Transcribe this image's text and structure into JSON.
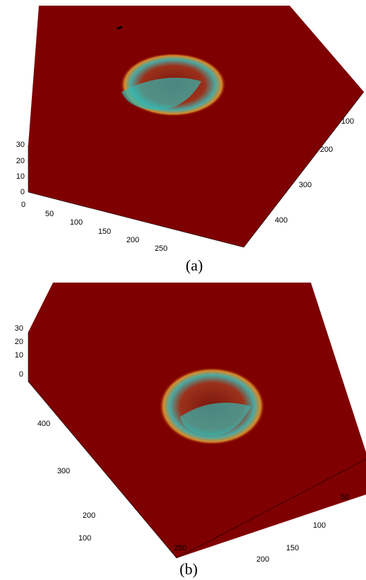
{
  "panels": [
    {
      "caption": "(a)",
      "z_ticks": [
        "0",
        "10",
        "20",
        "30"
      ],
      "x_ticks": [
        "0",
        "50",
        "100",
        "150",
        "200",
        "250"
      ],
      "y_ticks": [
        "100",
        "200",
        "300",
        "400"
      ]
    },
    {
      "caption": "(b)",
      "z_ticks": [
        "0",
        "10",
        "20",
        "30"
      ],
      "x_ticks": [
        "50",
        "100",
        "150",
        "200",
        "250"
      ],
      "y_ticks": [
        "100",
        "200",
        "300",
        "400"
      ]
    }
  ]
}
